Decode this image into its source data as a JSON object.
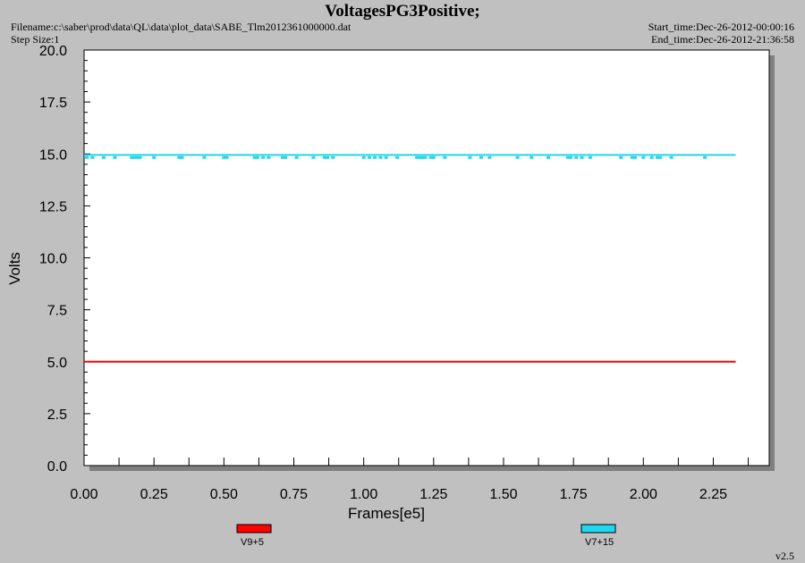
{
  "header": {
    "title": "VoltagesPG3Positive;",
    "filename": "Filename:c:\\saber\\prod\\data\\QL\\data\\plot_data\\SABE_Tlm2012361000000.dat",
    "step_size": "Step Size:1",
    "start_time": "Start_time:Dec-26-2012-00:00:16",
    "end_time": "End_time:Dec-26-2012-21:36:58"
  },
  "footer": {
    "version": "v2.5"
  },
  "colors": {
    "background": "#c0c0c0",
    "plot_bg": "#ffffff",
    "v9": "#ff0000",
    "v7": "#1ed8ee"
  },
  "chart_data": {
    "type": "line",
    "title": "VoltagesPG3Positive;",
    "xlabel": "Frames[e5]",
    "ylabel": "Volts",
    "xlim": [
      0,
      2.45
    ],
    "ylim": [
      0,
      20
    ],
    "x_ticks": [
      "0.00",
      "0.25",
      "0.50",
      "0.75",
      "1.00",
      "1.25",
      "1.50",
      "1.75",
      "2.00",
      "2.25"
    ],
    "y_ticks": [
      "0.0",
      "2.5",
      "5.0",
      "7.5",
      "10.0",
      "12.5",
      "15.0",
      "17.5",
      "20.0"
    ],
    "grid": false,
    "legend_position": "bottom",
    "series": [
      {
        "name": "V9+5",
        "color": "#ff0000",
        "x": [
          0.0,
          2.33
        ],
        "y": [
          5.0,
          5.0
        ]
      },
      {
        "name": "V7+15",
        "color": "#1ed8ee",
        "x": [
          0.0,
          2.33
        ],
        "y": [
          14.95,
          14.95
        ],
        "dips": {
          "value": 14.85,
          "x": [
            0.01,
            0.03,
            0.07,
            0.11,
            0.17,
            0.18,
            0.19,
            0.2,
            0.25,
            0.34,
            0.35,
            0.43,
            0.5,
            0.51,
            0.61,
            0.62,
            0.64,
            0.66,
            0.71,
            0.72,
            0.76,
            0.82,
            0.86,
            0.87,
            0.89,
            1.0,
            1.02,
            1.04,
            1.06,
            1.08,
            1.12,
            1.19,
            1.2,
            1.21,
            1.22,
            1.24,
            1.25,
            1.29,
            1.38,
            1.42,
            1.45,
            1.55,
            1.6,
            1.66,
            1.73,
            1.74,
            1.76,
            1.78,
            1.81,
            1.92,
            1.96,
            1.97,
            2.0,
            2.03,
            2.05,
            2.06,
            2.1,
            2.22
          ]
        }
      }
    ]
  }
}
